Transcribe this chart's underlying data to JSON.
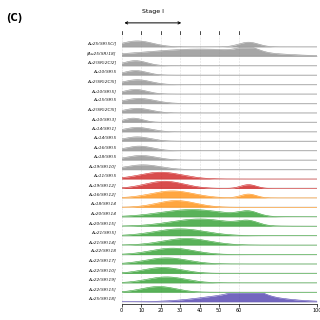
{
  "title": "(C)",
  "stage_label": "Stage I",
  "xlabel_vals": [
    0,
    10,
    20,
    30,
    40,
    50,
    60,
    100
  ],
  "series": [
    {
      "label": "Au25(SR)5Cl]",
      "color": "#888888",
      "peaks": [
        {
          "mu": 8,
          "sig": 8,
          "amp": 0.7
        },
        {
          "mu": 65,
          "sig": 5,
          "amp": 0.55
        }
      ]
    },
    {
      "label": "[Au25(SR)18]",
      "color": "#888888",
      "peaks": [
        {
          "mu": 40,
          "sig": 28,
          "amp": 0.85
        },
        {
          "mu": 65,
          "sig": 5,
          "amp": 0.55
        }
      ]
    },
    {
      "label": "Au2(SR)2Cl2]",
      "color": "#888888",
      "peaks": [
        {
          "mu": 7,
          "sig": 6,
          "amp": 0.6
        }
      ]
    },
    {
      "label": "Au10(SR)5",
      "color": "#888888",
      "peaks": [
        {
          "mu": 7,
          "sig": 6,
          "amp": 0.55
        }
      ]
    },
    {
      "label": "Au2(SR)2Cl5]",
      "color": "#888888",
      "peaks": [
        {
          "mu": 8,
          "sig": 7,
          "amp": 0.58
        }
      ]
    },
    {
      "label": "Au10(SR)5]",
      "color": "#888888",
      "peaks": [
        {
          "mu": 7,
          "sig": 6,
          "amp": 0.55
        }
      ]
    },
    {
      "label": "Au15(SR)5",
      "color": "#888888",
      "peaks": [
        {
          "mu": 9,
          "sig": 8,
          "amp": 0.6
        }
      ]
    },
    {
      "label": "Au2(SR)2Cl5]",
      "color": "#888888",
      "peaks": [
        {
          "mu": 8,
          "sig": 7,
          "amp": 0.55
        }
      ]
    },
    {
      "label": "Au10(SR)3]",
      "color": "#888888",
      "peaks": [
        {
          "mu": 6,
          "sig": 5,
          "amp": 0.5
        }
      ]
    },
    {
      "label": "Au14(SR)1]",
      "color": "#888888",
      "peaks": [
        {
          "mu": 8,
          "sig": 7,
          "amp": 0.52
        }
      ]
    },
    {
      "label": "Au14(SR)5",
      "color": "#888888",
      "peaks": [
        {
          "mu": 8,
          "sig": 7,
          "amp": 0.52
        }
      ]
    },
    {
      "label": "Au16(SR)5",
      "color": "#888888",
      "peaks": [
        {
          "mu": 9,
          "sig": 7,
          "amp": 0.54
        }
      ]
    },
    {
      "label": "Au18(SR)5",
      "color": "#888888",
      "peaks": [
        {
          "mu": 10,
          "sig": 8,
          "amp": 0.55
        }
      ]
    },
    {
      "label": "Au19(SR)10]",
      "color": "#888888",
      "peaks": [
        {
          "mu": 11,
          "sig": 9,
          "amp": 0.56
        }
      ]
    },
    {
      "label": "Au11(SR)5",
      "color": "#cc1111",
      "peaks": [
        {
          "mu": 20,
          "sig": 11,
          "amp": 0.8
        }
      ]
    },
    {
      "label": "Au19(SR)12]",
      "color": "#cc1111",
      "peaks": [
        {
          "mu": 22,
          "sig": 10,
          "amp": 0.85
        },
        {
          "mu": 65,
          "sig": 4,
          "amp": 0.45
        }
      ]
    },
    {
      "label": "Au16(SR)12]",
      "color": "#ff8800",
      "peaks": [
        {
          "mu": 26,
          "sig": 11,
          "amp": 0.82
        },
        {
          "mu": 65,
          "sig": 4,
          "amp": 0.45
        }
      ]
    },
    {
      "label": "Au18(SR)14",
      "color": "#ff8800",
      "peaks": [
        {
          "mu": 28,
          "sig": 10,
          "amp": 0.8
        }
      ]
    },
    {
      "label": "Au20(SR)14",
      "color": "#229922",
      "peaks": [
        {
          "mu": 36,
          "sig": 16,
          "amp": 0.85
        },
        {
          "mu": 65,
          "sig": 5,
          "amp": 0.55
        }
      ]
    },
    {
      "label": "Au20(SR)15]",
      "color": "#229922",
      "peaks": [
        {
          "mu": 40,
          "sig": 15,
          "amp": 0.85
        },
        {
          "mu": 65,
          "sig": 5,
          "amp": 0.5
        }
      ]
    },
    {
      "label": "Au21(SR)5]",
      "color": "#229922",
      "peaks": [
        {
          "mu": 30,
          "sig": 13,
          "amp": 0.8
        }
      ]
    },
    {
      "label": "Au21(SR)14]",
      "color": "#229922",
      "peaks": [
        {
          "mu": 33,
          "sig": 12,
          "amp": 0.78
        }
      ]
    },
    {
      "label": "Au22(SR)18",
      "color": "#229922",
      "peaks": [
        {
          "mu": 26,
          "sig": 11,
          "amp": 0.75
        }
      ]
    },
    {
      "label": "Au22(SR)17]",
      "color": "#229922",
      "peaks": [
        {
          "mu": 23,
          "sig": 11,
          "amp": 0.72
        }
      ]
    },
    {
      "label": "Au22(SR)10]",
      "color": "#229922",
      "peaks": [
        {
          "mu": 21,
          "sig": 10,
          "amp": 0.7
        }
      ]
    },
    {
      "label": "Au22(SR)19]",
      "color": "#229922",
      "peaks": [
        {
          "mu": 23,
          "sig": 10,
          "amp": 0.7
        }
      ]
    },
    {
      "label": "Au22(SR)15]",
      "color": "#229922",
      "peaks": [
        {
          "mu": 19,
          "sig": 9,
          "amp": 0.68
        }
      ]
    },
    {
      "label": "Au25(SR)18]",
      "color": "#4433aa",
      "peaks": [
        {
          "mu": 60,
          "sig": 18,
          "amp": 0.85
        },
        {
          "mu": 65,
          "sig": 6,
          "amp": 0.8
        }
      ]
    }
  ],
  "bg_color": "#ffffff",
  "grid_color": "#cccccc",
  "xmin": 0,
  "xmax": 100
}
